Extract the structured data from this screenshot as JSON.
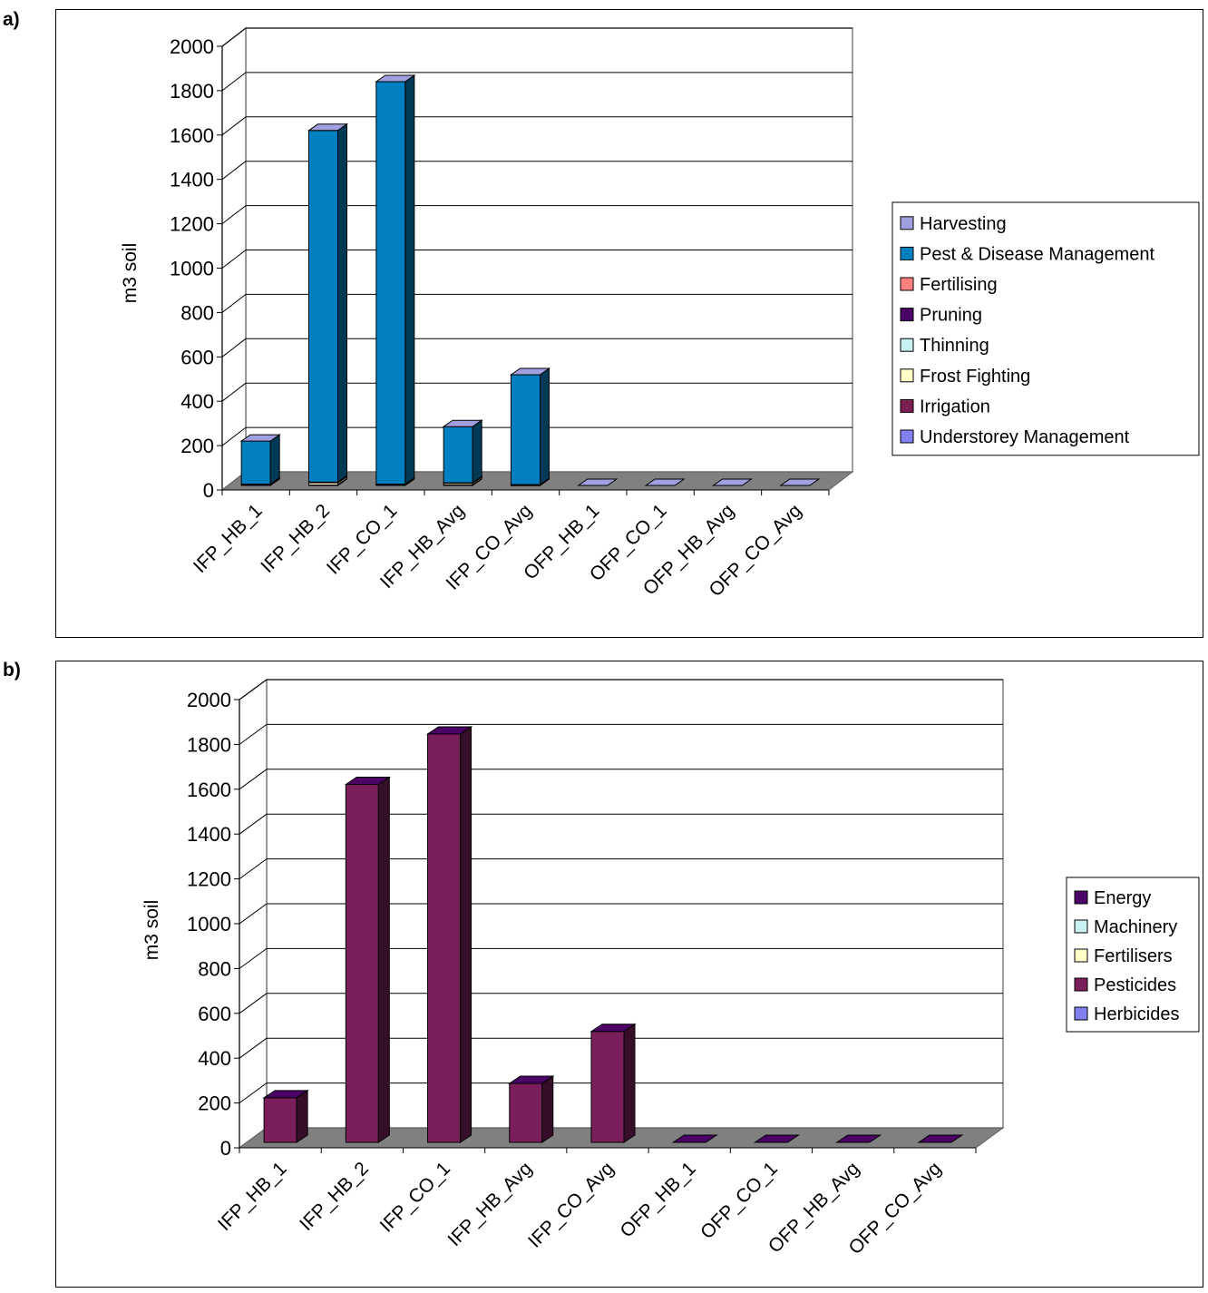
{
  "panels": [
    {
      "label": "a)",
      "chart_data": {
        "type": "bar",
        "stacked": true,
        "three_d": true,
        "categories": [
          "IFP_HB_1",
          "IFP_HB_2",
          "IFP_CO_1",
          "IFP_HB_Avg",
          "IFP_CO_Avg",
          "OFP_HB_1",
          "OFP_CO_1",
          "OFP_HB_Avg",
          "OFP_CO_Avg"
        ],
        "ylabel": "m3 soil",
        "ylim": [
          0,
          2000
        ],
        "yticks": [
          0,
          200,
          400,
          600,
          800,
          1000,
          1200,
          1400,
          1600,
          1800,
          2000
        ],
        "grid": true,
        "legend_position": "right",
        "series": [
          {
            "name": "Understorey Management",
            "color": "#8080f0",
            "values": [
              0,
              0,
              0,
              0,
              0,
              0,
              0,
              0,
              0
            ]
          },
          {
            "name": "Irrigation",
            "color": "#7b1f52",
            "values": [
              3,
              2,
              3,
              2,
              1,
              0,
              0,
              0,
              0
            ]
          },
          {
            "name": "Frost Fighting",
            "color": "#ffffc8",
            "values": [
              2,
              10,
              2,
              8,
              2,
              0,
              0,
              0,
              0
            ]
          },
          {
            "name": "Thinning",
            "color": "#c8f0f0",
            "values": [
              0,
              2,
              0,
              1,
              0,
              0,
              0,
              0,
              0
            ]
          },
          {
            "name": "Pruning",
            "color": "#4b0066",
            "values": [
              1,
              1,
              1,
              1,
              1,
              0,
              0,
              0,
              0
            ]
          },
          {
            "name": "Fertilising",
            "color": "#ff8080",
            "values": [
              0,
              0,
              0,
              0,
              0,
              0,
              0,
              0,
              0
            ]
          },
          {
            "name": "Pest & Disease Management",
            "color": "#0080c0",
            "values": [
              194,
              1585,
              1814,
              253,
              495,
              0,
              0,
              0,
              0
            ]
          },
          {
            "name": "Harvesting",
            "color": "#a0a0e0",
            "values": [
              0,
              0,
              0,
              0,
              0,
              0,
              0,
              0,
              0
            ]
          }
        ],
        "legend_order": [
          "Harvesting",
          "Pest & Disease Management",
          "Fertilising",
          "Pruning",
          "Thinning",
          "Frost Fighting",
          "Irrigation",
          "Understorey Management"
        ]
      }
    },
    {
      "label": "b)",
      "chart_data": {
        "type": "bar",
        "stacked": true,
        "three_d": true,
        "categories": [
          "IFP_HB_1",
          "IFP_HB_2",
          "IFP_CO_1",
          "IFP_HB_Avg",
          "IFP_CO_Avg",
          "OFP_HB_1",
          "OFP_CO_1",
          "OFP_HB_Avg",
          "OFP_CO_Avg"
        ],
        "ylabel": "m3 soil",
        "ylim": [
          0,
          2000
        ],
        "yticks": [
          0,
          200,
          400,
          600,
          800,
          1000,
          1200,
          1400,
          1600,
          1800,
          2000
        ],
        "grid": true,
        "legend_position": "right",
        "series": [
          {
            "name": "Herbicides",
            "color": "#8080f0",
            "values": [
              0,
              0,
              0,
              0,
              0,
              0,
              0,
              0,
              0
            ]
          },
          {
            "name": "Pesticides",
            "color": "#7b1f5c",
            "values": [
              199,
              1597,
              1822,
              263,
              495,
              0,
              0,
              0,
              0
            ]
          },
          {
            "name": "Fertilisers",
            "color": "#ffffc8",
            "values": [
              0,
              0,
              0,
              0,
              0,
              0,
              0,
              0,
              0
            ]
          },
          {
            "name": "Machinery",
            "color": "#c8f0f0",
            "values": [
              0,
              0,
              0,
              0,
              0,
              0,
              0,
              0,
              0
            ]
          },
          {
            "name": "Energy",
            "color": "#4b0066",
            "values": [
              0,
              0,
              0,
              0,
              0,
              0,
              0,
              0,
              0
            ]
          }
        ],
        "legend_order": [
          "Energy",
          "Machinery",
          "Fertilisers",
          "Pesticides",
          "Herbicides"
        ]
      }
    }
  ]
}
